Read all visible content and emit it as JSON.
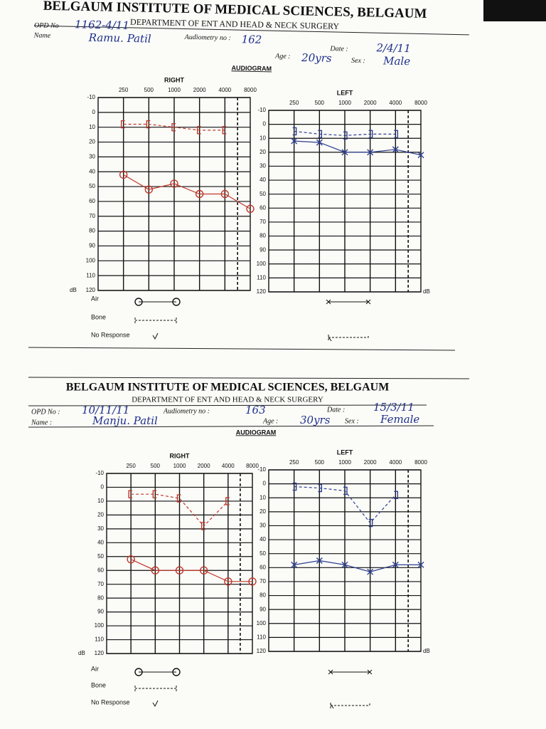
{
  "forms": [
    {
      "title": "BELGAUM INSTITUTE OF MEDICAL SCIENCES, BELGAUM",
      "department": "DEPARTMENT OF ENT AND HEAD & NECK SURGERY",
      "fields": {
        "opd_label": "OPD No",
        "opd": "1162-4/11",
        "name_label": "Name",
        "name": "Ramu. Patil",
        "audiometry_label": "Audiometry no :",
        "audiometry": "162",
        "date_label": "Date :",
        "date": "2/4/11",
        "age_label": "Age :",
        "age": "20yrs",
        "sex_label": "Sex :",
        "sex": "Male"
      },
      "audiogram_label": "AUDIOGRAM",
      "legend": [
        "Air",
        "Bone",
        "No Response"
      ],
      "charts": [
        {
          "type": "line",
          "title": "RIGHT",
          "unit": "dB",
          "categories": [
            250,
            500,
            1000,
            2000,
            4000,
            8000
          ],
          "ylim": [
            -10,
            120
          ],
          "yticks": [
            -10,
            0,
            10,
            20,
            30,
            40,
            50,
            60,
            70,
            80,
            90,
            100,
            110,
            120
          ],
          "invert_y": true,
          "grid": true,
          "series": [
            {
              "color": "#c0392b",
              "dashed": false,
              "marker": "O",
              "values": [
                42,
                52,
                48,
                55,
                55,
                65
              ]
            },
            {
              "color": "#c0392b",
              "dashed": true,
              "marker": "[",
              "values": [
                8,
                8,
                10,
                12,
                12,
                null
              ]
            }
          ]
        },
        {
          "type": "line",
          "title": "LEFT",
          "unit": "dB",
          "categories": [
            250,
            500,
            1000,
            2000,
            4000,
            8000
          ],
          "ylim": [
            -10,
            120
          ],
          "yticks": [
            -10,
            0,
            10,
            20,
            30,
            40,
            50,
            60,
            70,
            80,
            90,
            100,
            110,
            120
          ],
          "invert_y": true,
          "grid": true,
          "series": [
            {
              "color": "#2c3e8f",
              "dashed": false,
              "marker": "X",
              "values": [
                12,
                13,
                20,
                20,
                18,
                22
              ]
            },
            {
              "color": "#2c3e8f",
              "dashed": true,
              "marker": "]",
              "values": [
                5,
                7,
                8,
                7,
                7,
                null
              ]
            }
          ]
        }
      ]
    },
    {
      "title": "BELGAUM INSTITUTE OF MEDICAL SCIENCES, BELGAUM",
      "department": "DEPARTMENT OF ENT AND HEAD & NECK SURGERY",
      "fields": {
        "opd_label": "OPD No :",
        "opd": "10/11/11",
        "name_label": "Name :",
        "name": "Manju. Patil",
        "audiometry_label": "Audiometry no :",
        "audiometry": "163",
        "date_label": "Date :",
        "date": "15/3/11",
        "age_label": "Age :",
        "age": "30yrs",
        "sex_label": "Sex :",
        "sex": "Female"
      },
      "audiogram_label": "AUDIOGRAM",
      "legend": [
        "Air",
        "Bone",
        "No Response"
      ],
      "charts": [
        {
          "type": "line",
          "title": "RIGHT",
          "unit": "dB",
          "categories": [
            250,
            500,
            1000,
            2000,
            4000,
            8000
          ],
          "ylim": [
            -10,
            120
          ],
          "yticks": [
            -10,
            0,
            10,
            20,
            30,
            40,
            50,
            60,
            70,
            80,
            90,
            100,
            110,
            120
          ],
          "invert_y": true,
          "grid": true,
          "series": [
            {
              "color": "#c0392b",
              "dashed": false,
              "marker": "O",
              "values": [
                52,
                60,
                60,
                60,
                68,
                68
              ]
            },
            {
              "color": "#c0392b",
              "dashed": true,
              "marker": "[",
              "values": [
                5,
                5,
                8,
                28,
                10,
                null
              ]
            }
          ]
        },
        {
          "type": "line",
          "title": "LEFT",
          "unit": "dB",
          "categories": [
            250,
            500,
            1000,
            2000,
            4000,
            8000
          ],
          "ylim": [
            -10,
            120
          ],
          "yticks": [
            -10,
            0,
            10,
            20,
            30,
            40,
            50,
            60,
            70,
            80,
            90,
            100,
            110,
            120
          ],
          "invert_y": true,
          "grid": true,
          "series": [
            {
              "color": "#2c3e8f",
              "dashed": false,
              "marker": "X",
              "values": [
                58,
                55,
                58,
                63,
                58,
                58
              ]
            },
            {
              "color": "#2c3e8f",
              "dashed": true,
              "marker": "]",
              "values": [
                2,
                3,
                5,
                28,
                8,
                null
              ]
            }
          ]
        }
      ]
    }
  ]
}
